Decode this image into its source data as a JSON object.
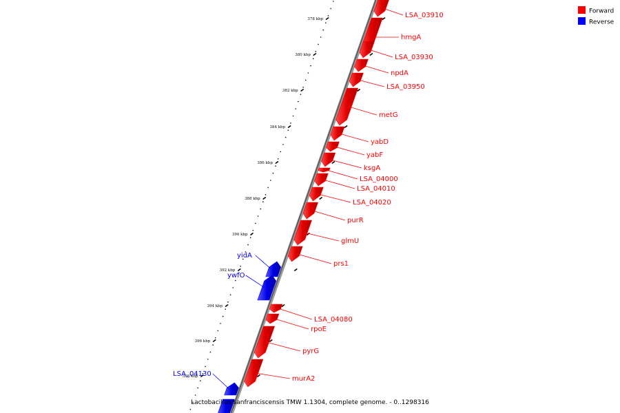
{
  "legend": [
    {
      "label": "Forward",
      "color": "#ff0000"
    },
    {
      "label": "Reverse",
      "color": "#0000ff"
    }
  ],
  "footer": "Lactobacillus sanfranciscensis TMW 1.1304, complete genome. - 0..1298316",
  "scale_labels": [
    "378 kbp",
    "380 kbp",
    "382 kbp",
    "384 kbp",
    "386 kbp",
    "388 kbp",
    "390 kbp",
    "392 kbp",
    "394 kbp",
    "396 kbp",
    "398 kbp"
  ],
  "colors": {
    "forward": "#ff0000",
    "reverse": "#0000ff",
    "backbone": "#888888"
  },
  "genes": [
    {
      "name": "LSA_03910",
      "strand": "forward"
    },
    {
      "name": "hmgA",
      "strand": "forward"
    },
    {
      "name": "LSA_03930",
      "strand": "forward"
    },
    {
      "name": "npdA",
      "strand": "forward"
    },
    {
      "name": "LSA_03950",
      "strand": "forward"
    },
    {
      "name": "metG",
      "strand": "forward"
    },
    {
      "name": "yabD",
      "strand": "forward"
    },
    {
      "name": "yabF",
      "strand": "forward"
    },
    {
      "name": "ksgA",
      "strand": "forward"
    },
    {
      "name": "LSA_04000",
      "strand": "forward"
    },
    {
      "name": "LSA_04010",
      "strand": "forward"
    },
    {
      "name": "LSA_04020",
      "strand": "forward"
    },
    {
      "name": "purR",
      "strand": "forward"
    },
    {
      "name": "glmU",
      "strand": "forward"
    },
    {
      "name": "prs1",
      "strand": "forward"
    },
    {
      "name": "yidA",
      "strand": "reverse"
    },
    {
      "name": "ywfO",
      "strand": "reverse"
    },
    {
      "name": "LSA_04080",
      "strand": "forward"
    },
    {
      "name": "rpoE",
      "strand": "forward"
    },
    {
      "name": "pyrG",
      "strand": "forward"
    },
    {
      "name": "murA2",
      "strand": "forward"
    },
    {
      "name": "LSA_04130",
      "strand": "reverse"
    }
  ]
}
